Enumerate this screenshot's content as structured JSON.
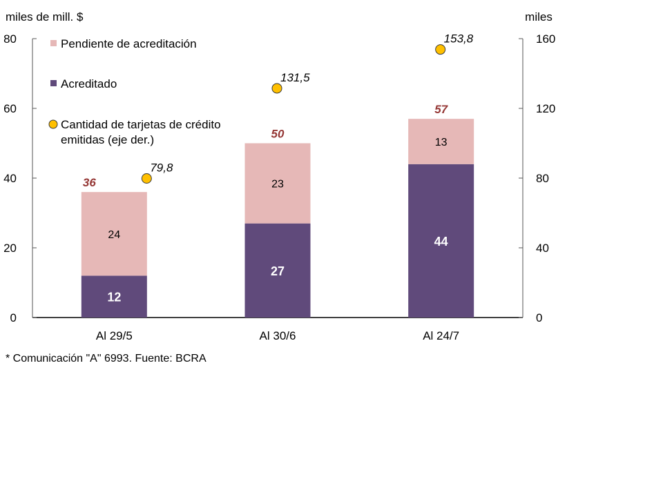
{
  "chart_data": {
    "type": "bar",
    "stacked": true,
    "left_axis_label": "miles de mill. $",
    "right_axis_label": "miles",
    "categories": [
      "Al 29/5",
      "Al 30/6",
      "Al 24/7"
    ],
    "series": [
      {
        "name": "Acreditado",
        "values": [
          12,
          27,
          44
        ],
        "color": "#604a7b",
        "axis": "left"
      },
      {
        "name": "Pendiente de acreditación",
        "values": [
          24,
          23,
          13
        ],
        "color": "#e6b8b7",
        "axis": "left"
      },
      {
        "name": "Cantidad de tarjetas de crédito emitidas (eje der.)",
        "type": "scatter",
        "values": [
          79.8,
          131.5,
          153.8
        ],
        "labels": [
          "79,8",
          "131,5",
          "153,8"
        ],
        "color": "#ffc000",
        "axis": "right"
      }
    ],
    "totals": [
      36,
      50,
      57
    ],
    "total_color": "#953735",
    "ylim_left": [
      0,
      80
    ],
    "yticks_left": [
      0,
      20,
      40,
      60,
      80
    ],
    "ylim_right": [
      0,
      160
    ],
    "yticks_right": [
      0,
      40,
      80,
      120,
      160
    ],
    "legend": {
      "placement": "top-left",
      "entries": [
        "Pendiente de acreditación",
        "Acreditado",
        "Cantidad de tarjetas de crédito",
        "emitidas (eje der.)"
      ]
    },
    "grid": false,
    "footnote": "* Comunicación \"A\" 6993. Fuente: BCRA"
  }
}
